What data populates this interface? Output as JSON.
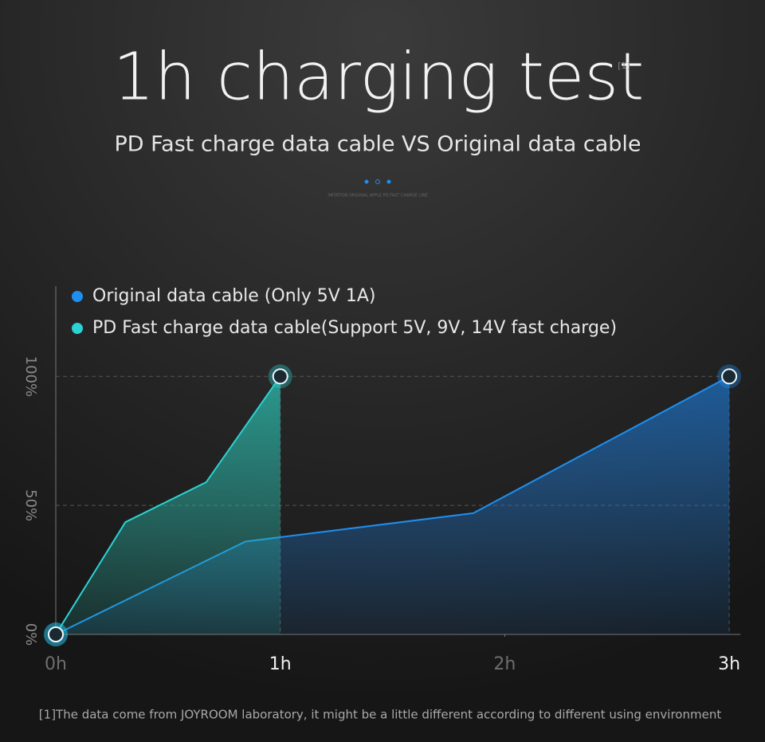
{
  "chart_data": {
    "type": "area",
    "title": "1h charging test",
    "title_note": "[1]",
    "subtitle": "PD Fast charge data cable VS Original data cable",
    "caption": "IMITATION ORIGINAL APPLE PD FAST CHARGE LINE",
    "footnote": "[1]The data come from JOYROOM laboratory, it might be a little different according to different using environment",
    "series": [
      {
        "name": "Original data cable (Only 5V 1A)",
        "color": "#1e8ff0",
        "x": [
          0,
          0.845,
          1.86,
          3
        ],
        "values": [
          0,
          36,
          47,
          100
        ]
      },
      {
        "name": "PD Fast charge data cable(Support 5V, 9V, 14V fast charge)",
        "color": "#2bd3d3",
        "x": [
          0,
          0.31,
          0.67,
          1
        ],
        "values": [
          0,
          43.5,
          59,
          100
        ]
      }
    ],
    "xlim": [
      0,
      3.05
    ],
    "ylim": [
      0,
      135
    ],
    "xticks": [
      {
        "value": 0,
        "label": "0h"
      },
      {
        "value": 1,
        "label": "1h"
      },
      {
        "value": 2,
        "label": "2h"
      },
      {
        "value": 3,
        "label": "3h"
      }
    ],
    "yticks": [
      {
        "value": 0,
        "label": "0%"
      },
      {
        "value": 50,
        "label": "50%"
      },
      {
        "value": 100,
        "label": "100%"
      }
    ]
  }
}
